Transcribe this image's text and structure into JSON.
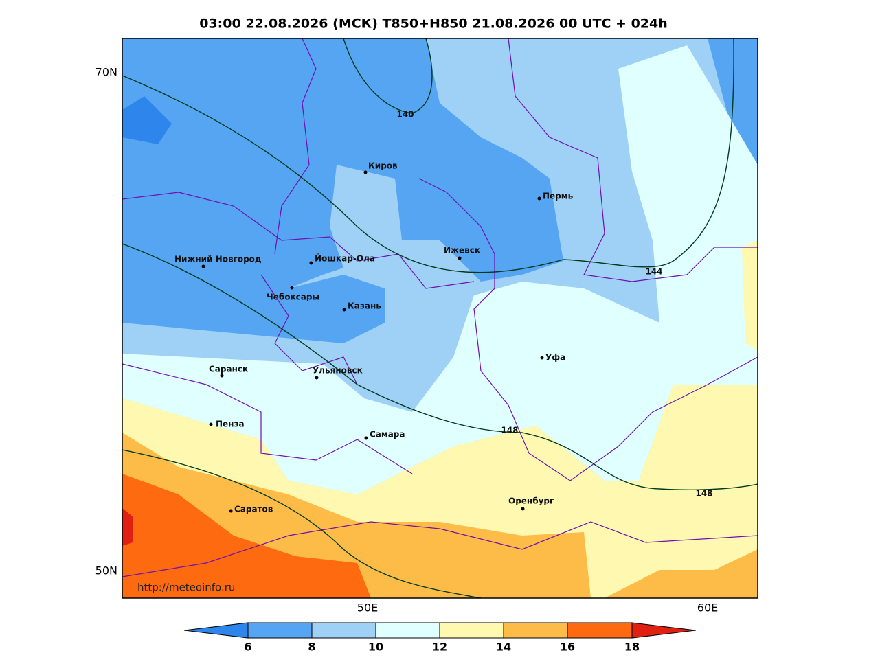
{
  "title": "03:00 22.08.2026 (МСК) T850+H850 21.08.2026 00 UTC + 024h",
  "axis_labels": {
    "lat": [
      "70N",
      "50N"
    ],
    "lon": [
      "50E",
      "60E"
    ]
  },
  "cities": [
    "Киров",
    "Пермь",
    "Нижний Новгород",
    "Йошкар-Ола",
    "Ижевск",
    "Чебоксары",
    "Казань",
    "Саранск",
    "Ульяновск",
    "Уфа",
    "Пенза",
    "Самара",
    "Саратов",
    "Оренбург"
  ],
  "contour_labels": [
    "140",
    "144",
    "148",
    "148"
  ],
  "colorbar_ticks": [
    "6",
    "8",
    "10",
    "12",
    "14",
    "16",
    "18"
  ],
  "credit": "http://meteoinfo.ru"
}
